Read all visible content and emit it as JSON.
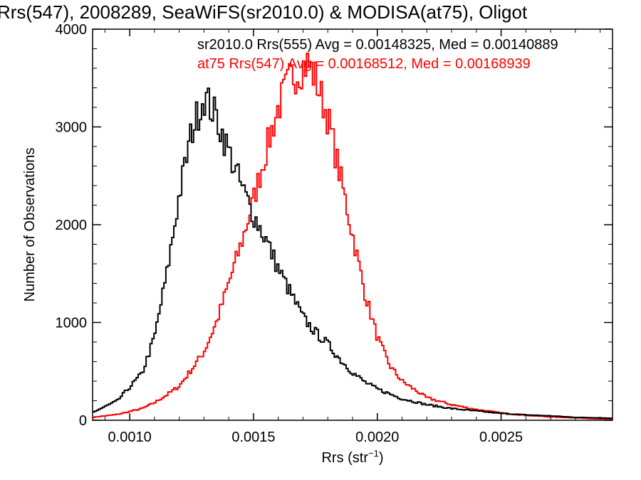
{
  "chart_data": {
    "type": "histogram",
    "title": "Rrs(547), 2008289, SeaWiFS(sr2010.0) & MODISA(at75), Oligot",
    "xlabel": "Rrs (str",
    "xlabel_sup": "−1",
    "xlabel_close": ")",
    "ylabel": "Number of Observations",
    "xlim": [
      0.00085,
      0.00295
    ],
    "ylim": [
      0,
      4000
    ],
    "x_ticks": [
      0.001,
      0.0015,
      0.002,
      0.0025
    ],
    "x_tick_labels": [
      "0.0010",
      "0.0015",
      "0.0020",
      "0.0025"
    ],
    "y_ticks": [
      0,
      1000,
      2000,
      3000,
      4000
    ],
    "y_tick_labels": [
      "0",
      "1000",
      "2000",
      "3000",
      "4000"
    ],
    "grid": false,
    "legend_position": "top-right",
    "bin_width": 8e-06,
    "series": [
      {
        "name": "sr2010.0 Rrs(555) Avg = 0.00148325, Med = 0.00140889",
        "color": "#000000",
        "x": [
          0.00085,
          0.00095,
          0.00105,
          0.0011,
          0.00115,
          0.0012,
          0.00125,
          0.0013,
          0.00135,
          0.0014,
          0.00145,
          0.0015,
          0.00155,
          0.0016,
          0.00165,
          0.0017,
          0.00175,
          0.0018,
          0.00185,
          0.0019,
          0.00195,
          0.002,
          0.0021,
          0.0022,
          0.0023,
          0.0024,
          0.0025,
          0.0026,
          0.0027,
          0.0028,
          0.0029,
          0.00295
        ],
        "values": [
          80,
          200,
          480,
          850,
          1500,
          2300,
          2950,
          3320,
          3100,
          2750,
          2400,
          2100,
          1850,
          1550,
          1300,
          1050,
          900,
          780,
          620,
          490,
          390,
          320,
          220,
          160,
          120,
          95,
          70,
          55,
          45,
          30,
          25,
          20
        ]
      },
      {
        "name": "at75 Rrs(547) Avg = 0.00168512, Med = 0.00168939",
        "color": "#ff0000",
        "x": [
          0.00085,
          0.00095,
          0.001,
          0.00105,
          0.0011,
          0.00115,
          0.0012,
          0.00125,
          0.0013,
          0.00135,
          0.0014,
          0.00145,
          0.0015,
          0.00155,
          0.0016,
          0.00165,
          0.0017,
          0.00172,
          0.00175,
          0.0018,
          0.00185,
          0.0019,
          0.00195,
          0.002,
          0.00205,
          0.0021,
          0.0022,
          0.0023,
          0.0024,
          0.0025,
          0.0026,
          0.0027,
          0.0028,
          0.0029,
          0.00295
        ],
        "values": [
          30,
          60,
          90,
          120,
          180,
          260,
          350,
          520,
          700,
          1000,
          1400,
          1800,
          2250,
          2750,
          3200,
          3500,
          3620,
          3650,
          3500,
          3100,
          2500,
          1900,
          1300,
          850,
          560,
          400,
          230,
          160,
          110,
          75,
          50,
          35,
          25,
          15,
          12
        ]
      }
    ]
  }
}
